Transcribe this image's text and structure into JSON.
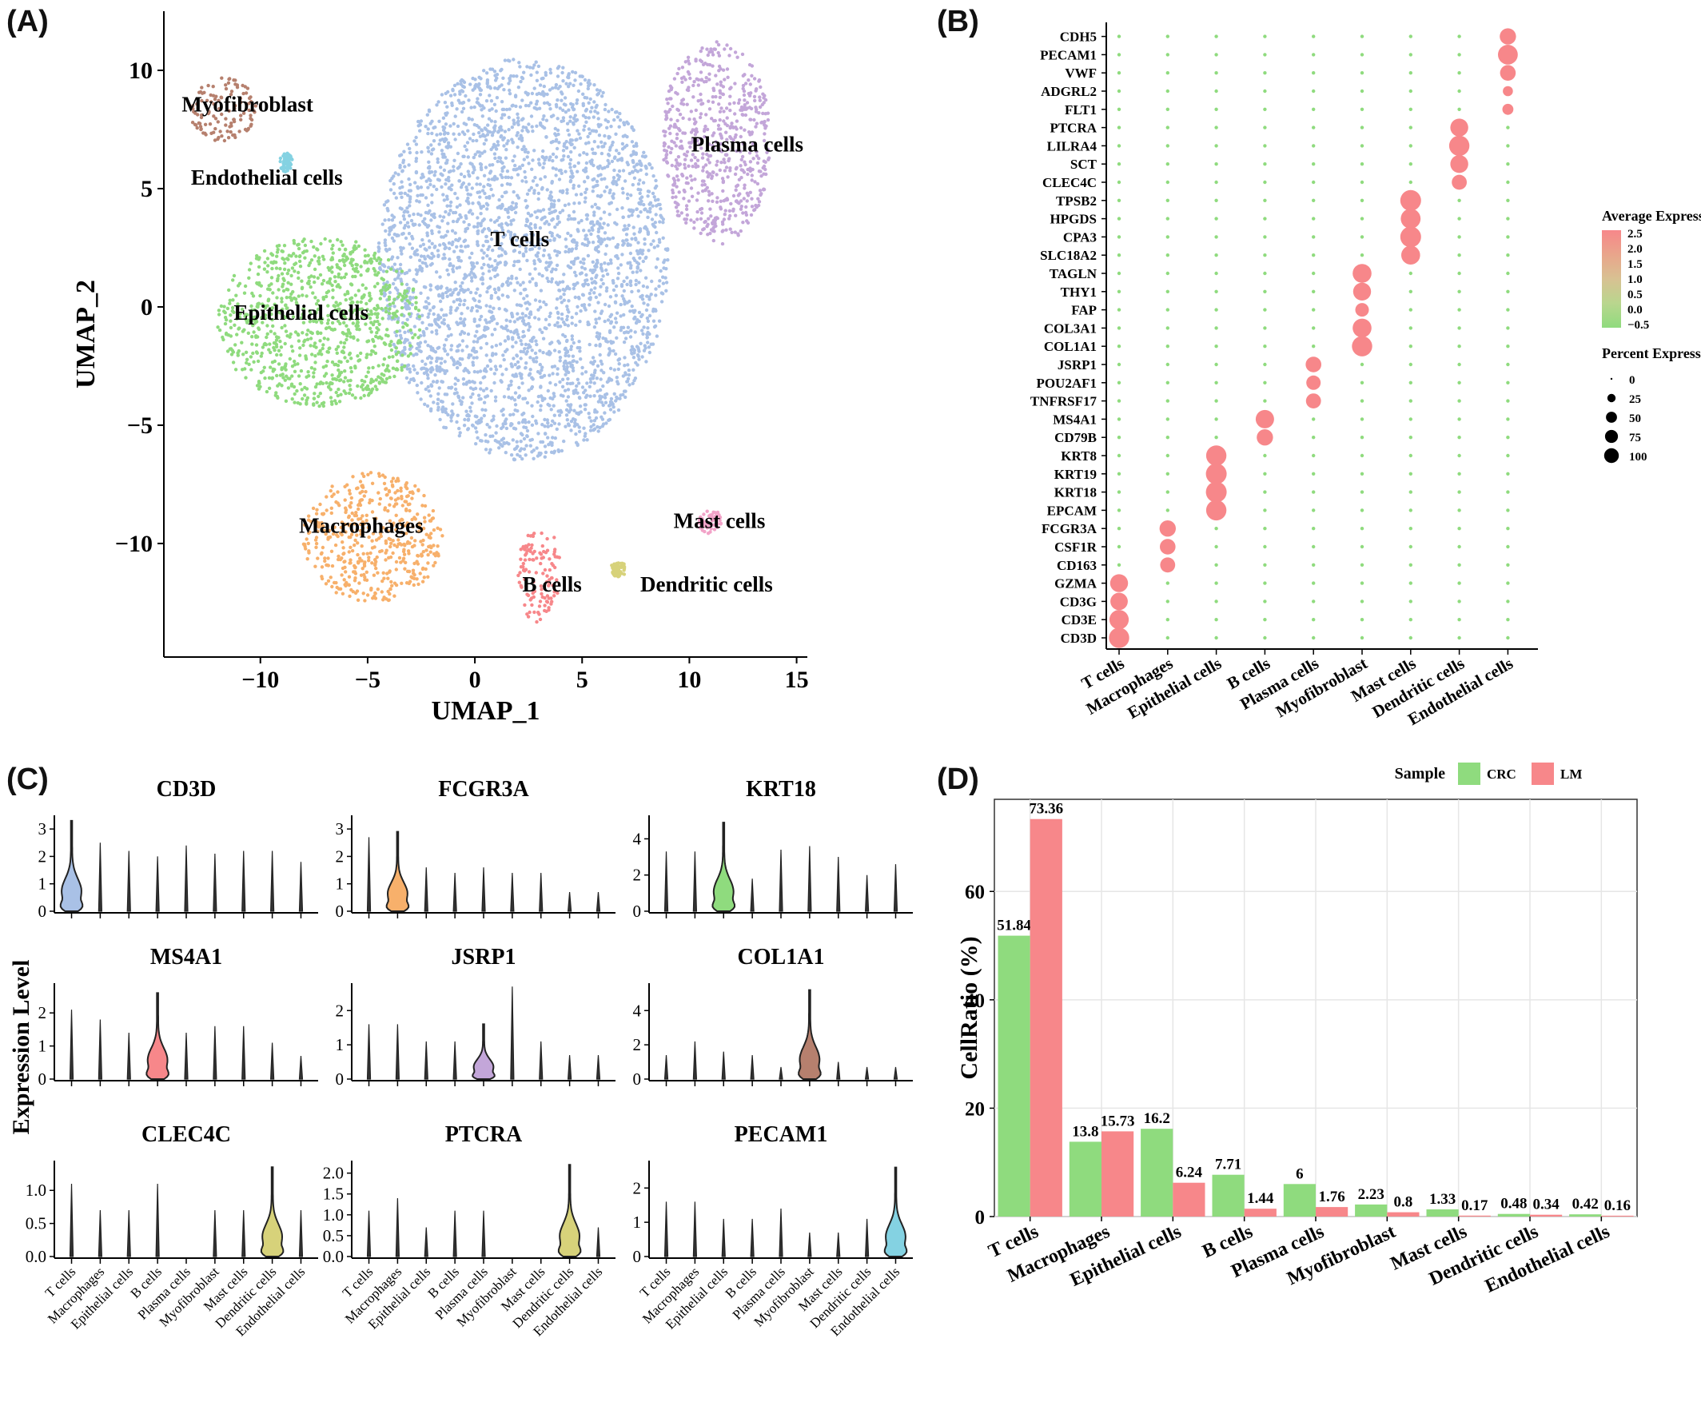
{
  "panel_labels": {
    "a": "(A)",
    "b": "(B)",
    "c": "(C)",
    "d": "(D)"
  },
  "chart_data": [
    {
      "panel": "A",
      "type": "scatter",
      "xlabel": "UMAP_1",
      "ylabel": "UMAP_2",
      "xlim": [
        -14.5,
        15.5
      ],
      "ylim": [
        -14.8,
        12.5
      ],
      "xticks": [
        -10,
        -5,
        0,
        5,
        10,
        15
      ],
      "yticks": [
        -10,
        -5,
        0,
        5,
        10
      ],
      "xtick_labels": [
        "−10",
        "−5",
        "0",
        "5",
        "10",
        "15"
      ],
      "ytick_labels": [
        "−10",
        "−5",
        "0",
        "5",
        "10"
      ],
      "clusters": [
        {
          "label": "T cells",
          "color": "#a9c1e6",
          "label_at": [
            2.1,
            2.9
          ],
          "extent": {
            "x": [
              -4.5,
              9.0
            ],
            "y": [
              -6.5,
              10.5
            ]
          }
        },
        {
          "label": "Epithelial cells",
          "color": "#8fdb7e",
          "label_at": [
            -8.1,
            -0.2
          ],
          "extent": {
            "x": [
              -12.0,
              -2.5
            ],
            "y": [
              -4.2,
              3.0
            ]
          }
        },
        {
          "label": "Macrophages",
          "color": "#f7b06b",
          "label_at": [
            -5.3,
            -9.2
          ],
          "extent": {
            "x": [
              -8.0,
              -1.5
            ],
            "y": [
              -12.5,
              -7.0
            ]
          }
        },
        {
          "label": "Plasma cells",
          "color": "#c3a6d9",
          "label_at": [
            12.7,
            6.9
          ],
          "extent": {
            "x": [
              8.7,
              13.8
            ],
            "y": [
              2.6,
              11.3
            ]
          }
        },
        {
          "label": "Myofibroblast",
          "color": "#b6806e",
          "label_at": [
            -10.6,
            8.6
          ],
          "extent": {
            "x": [
              -13.3,
              -10.2
            ],
            "y": [
              7.0,
              9.7
            ]
          }
        },
        {
          "label": "Endothelial cells",
          "color": "#84d2e2",
          "label_at": [
            -9.7,
            5.5
          ],
          "extent": {
            "x": [
              -9.1,
              -8.5
            ],
            "y": [
              5.7,
              6.5
            ]
          }
        },
        {
          "label": "B cells",
          "color": "#f7878a",
          "label_at": [
            3.6,
            -11.7
          ],
          "extent": {
            "x": [
              2.0,
              4.0
            ],
            "y": [
              -13.4,
              -9.1
            ]
          }
        },
        {
          "label": "Mast cells",
          "color": "#f2a3c8",
          "label_at": [
            11.4,
            -9.0
          ],
          "extent": {
            "x": [
              10.4,
              11.6
            ],
            "y": [
              -9.6,
              -8.6
            ]
          }
        },
        {
          "label": "Dendritic cells",
          "color": "#d7d27a",
          "label_at": [
            10.8,
            -11.7
          ],
          "extent": {
            "x": [
              6.3,
              7.1
            ],
            "y": [
              -11.4,
              -10.8
            ]
          }
        }
      ]
    },
    {
      "panel": "B",
      "type": "scatter",
      "subtype": "dot plot",
      "categories": [
        "T cells",
        "Macrophages",
        "Epithelial cells",
        "B cells",
        "Plasma cells",
        "Myofibroblast",
        "Mast cells",
        "Dendritic cells",
        "Endothelial cells"
      ],
      "genes": [
        "CD3D",
        "CD3E",
        "CD3G",
        "GZMA",
        "CD163",
        "CSF1R",
        "FCGR3A",
        "EPCAM",
        "KRT18",
        "KRT19",
        "KRT8",
        "CD79B",
        "MS4A1",
        "TNFRSF17",
        "POU2AF1",
        "JSRP1",
        "COL1A1",
        "COL3A1",
        "FAP",
        "THY1",
        "TAGLN",
        "SLC18A2",
        "CPA3",
        "HPGDS",
        "TPSB2",
        "CLEC4C",
        "SCT",
        "LILRA4",
        "PTCRA",
        "FLT1",
        "ADGRL2",
        "VWF",
        "PECAM1",
        "CDH5"
      ],
      "marker_groups": [
        {
          "cluster": "T cells",
          "genes": [
            "CD3D",
            "CD3E",
            "CD3G",
            "GZMA"
          ],
          "pct": [
            95,
            85,
            65,
            70
          ]
        },
        {
          "cluster": "Macrophages",
          "genes": [
            "CD163",
            "CSF1R",
            "FCGR3A"
          ],
          "pct": [
            45,
            50,
            55
          ]
        },
        {
          "cluster": "Epithelial cells",
          "genes": [
            "EPCAM",
            "KRT18",
            "KRT19",
            "KRT8"
          ],
          "pct": [
            95,
            100,
            100,
            95
          ]
        },
        {
          "cluster": "B cells",
          "genes": [
            "CD79B",
            "MS4A1"
          ],
          "pct": [
            55,
            75
          ]
        },
        {
          "cluster": "Plasma cells",
          "genes": [
            "TNFRSF17",
            "POU2AF1",
            "JSRP1"
          ],
          "pct": [
            45,
            40,
            50
          ]
        },
        {
          "cluster": "Myofibroblast",
          "genes": [
            "COL1A1",
            "COL3A1",
            "FAP",
            "THY1",
            "TAGLN"
          ],
          "pct": [
            95,
            80,
            35,
            70,
            80
          ]
        },
        {
          "cluster": "Mast cells",
          "genes": [
            "SLC18A2",
            "CPA3",
            "HPGDS",
            "TPSB2"
          ],
          "pct": [
            80,
            100,
            90,
            100
          ]
        },
        {
          "cluster": "Dendritic cells",
          "genes": [
            "CLEC4C",
            "SCT",
            "LILRA4",
            "PTCRA"
          ],
          "pct": [
            45,
            70,
            95,
            70
          ]
        },
        {
          "cluster": "Endothelial cells",
          "genes": [
            "FLT1",
            "ADGRL2",
            "VWF",
            "PECAM1",
            "CDH5"
          ],
          "pct": [
            20,
            15,
            50,
            90,
            55
          ]
        }
      ],
      "background_pct": 5,
      "legend": {
        "avg_title": "Average Expression",
        "avg_ticks": [
          "2.5",
          "2.0",
          "1.5",
          "1.0",
          "0.5",
          "0.0",
          "−0.5"
        ],
        "colors": [
          "#f7878a",
          "#e9a58b",
          "#d8c192",
          "#b9d68e",
          "#8fdb7e"
        ],
        "pct_title": "Percent Expressed",
        "pct_values": [
          0,
          25,
          50,
          75,
          100
        ],
        "pct_labels": [
          "0",
          "25",
          "50",
          "75",
          "100"
        ]
      }
    },
    {
      "panel": "C",
      "type": "area",
      "subtype": "violin",
      "ylabel": "Expression Level",
      "categories": [
        "T cells",
        "Macrophages",
        "Epithelial cells",
        "B cells",
        "Plasma cells",
        "Myofibroblast",
        "Mast cells",
        "Dendritic cells",
        "Endothelial cells"
      ],
      "panels": [
        {
          "gene": "CD3D",
          "yticks": [
            0,
            1,
            2,
            3
          ],
          "ymax": 3.5,
          "max": [
            3.3,
            2.5,
            2.2,
            2.0,
            2.4,
            2.1,
            2.2,
            2.2,
            1.8
          ],
          "highlight": 0,
          "color": "#a9c1e6"
        },
        {
          "gene": "FCGR3A",
          "yticks": [
            0,
            1,
            2,
            3
          ],
          "ymax": 3.5,
          "max": [
            2.7,
            2.9,
            1.6,
            1.4,
            1.6,
            1.4,
            1.4,
            0.7,
            0.7
          ],
          "highlight": 1,
          "color": "#f7b06b"
        },
        {
          "gene": "KRT18",
          "yticks": [
            0,
            2,
            4
          ],
          "ymax": 5.3,
          "max": [
            3.3,
            3.3,
            4.9,
            1.8,
            3.4,
            3.6,
            3.0,
            2.0,
            2.6
          ],
          "highlight": 2,
          "color": "#8fdb7e"
        },
        {
          "gene": "MS4A1",
          "yticks": [
            0,
            1,
            2
          ],
          "ymax": 2.9,
          "max": [
            2.1,
            1.8,
            1.4,
            2.6,
            1.4,
            1.6,
            1.6,
            1.1,
            0.7
          ],
          "highlight": 3,
          "color": "#f7878a"
        },
        {
          "gene": "JSRP1",
          "yticks": [
            0,
            1,
            2
          ],
          "ymax": 2.8,
          "max": [
            1.6,
            1.6,
            1.1,
            1.1,
            1.6,
            2.7,
            1.1,
            0.7,
            0.7
          ],
          "highlight": 4,
          "color": "#c3a6d9"
        },
        {
          "gene": "COL1A1",
          "yticks": [
            0,
            2,
            4
          ],
          "ymax": 5.6,
          "max": [
            1.4,
            2.2,
            1.6,
            1.4,
            0.7,
            5.2,
            1.0,
            0.7,
            0.7
          ],
          "highlight": 5,
          "color": "#b6806e"
        },
        {
          "gene": "CLEC4C",
          "yticks": [
            0.0,
            0.5,
            1.0
          ],
          "tick_labels": [
            "0.0",
            "0.5",
            "1.0"
          ],
          "ymax": 1.45,
          "max": [
            1.1,
            0.7,
            0.7,
            1.1,
            0.0,
            0.7,
            0.7,
            1.35,
            0.7
          ],
          "highlight": 7,
          "color": "#d7d27a"
        },
        {
          "gene": "PTCRA",
          "yticks": [
            0.0,
            0.5,
            1.0,
            1.5,
            2.0
          ],
          "tick_labels": [
            "0.0",
            "0.5",
            "1.0",
            "1.5",
            "2.0"
          ],
          "ymax": 2.3,
          "max": [
            1.1,
            1.4,
            0.7,
            1.1,
            1.1,
            0.0,
            0.0,
            2.2,
            0.7
          ],
          "highlight": 7,
          "color": "#d7d27a"
        },
        {
          "gene": "PECAM1",
          "yticks": [
            0,
            1,
            2
          ],
          "ymax": 2.8,
          "max": [
            1.6,
            1.6,
            1.1,
            1.1,
            1.4,
            0.7,
            0.7,
            1.1,
            2.6
          ],
          "highlight": 8,
          "color": "#84d2e2"
        }
      ]
    },
    {
      "panel": "D",
      "type": "bar",
      "ylabel": "CellRatio (%)",
      "ylim": [
        0,
        77
      ],
      "yticks": [
        0,
        20,
        40,
        60
      ],
      "grid": true,
      "legend": {
        "title": "Sample",
        "position": "top-right"
      },
      "categories": [
        "T cells",
        "Macrophages",
        "Epithelial cells",
        "B cells",
        "Plasma cells",
        "Myofibroblast",
        "Mast cells",
        "Dendritic cells",
        "Endothelial cells"
      ],
      "series": [
        {
          "name": "CRC",
          "color": "#8fdb7e",
          "values": [
            51.84,
            13.8,
            16.2,
            7.71,
            6,
            2.23,
            1.33,
            0.48,
            0.42
          ],
          "labels": [
            "51.84",
            "13.8",
            "16.2",
            "7.71",
            "6",
            "2.23",
            "1.33",
            "0.48",
            "0.42"
          ]
        },
        {
          "name": "LM",
          "color": "#f7878a",
          "values": [
            73.36,
            15.73,
            6.24,
            1.44,
            1.76,
            0.8,
            0.17,
            0.34,
            0.16
          ],
          "labels": [
            "73.36",
            "15.73",
            "6.24",
            "1.44",
            "1.76",
            "0.8",
            "0.17",
            "0.34",
            "0.16"
          ]
        }
      ]
    }
  ]
}
